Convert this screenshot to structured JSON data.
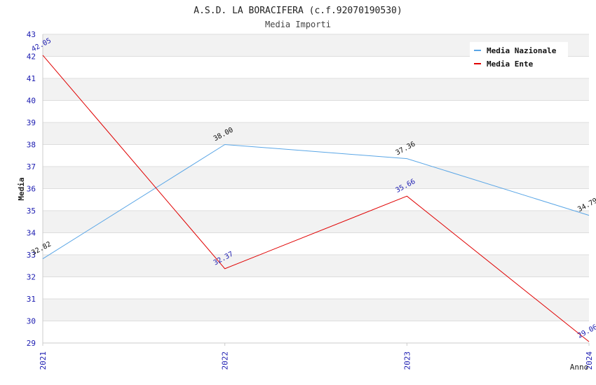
{
  "chart_data": {
    "type": "line",
    "title": "A.S.D. LA BORACIFERA (c.f.92070190530)",
    "subtitle": "Media Importi",
    "xlabel": "Anno",
    "ylabel": "Media",
    "categories": [
      "2021",
      "2022",
      "2023",
      "2024"
    ],
    "ylim": [
      29,
      43
    ],
    "yticks": [
      "29",
      "30",
      "31",
      "32",
      "33",
      "34",
      "35",
      "36",
      "37",
      "38",
      "39",
      "40",
      "41",
      "42",
      "43"
    ],
    "grid": "horizontal bands",
    "legend_position": "top-right",
    "series": [
      {
        "name": "Media Nazionale",
        "color": "#5aa6e6",
        "values": [
          32.82,
          38.0,
          37.36,
          34.79
        ],
        "labels": [
          "32.82",
          "38.00",
          "37.36",
          "34.79"
        ]
      },
      {
        "name": "Media Ente",
        "color": "#e00000",
        "values": [
          42.05,
          32.37,
          35.66,
          29.06
        ],
        "labels": [
          "42.05",
          "32.37",
          "35.66",
          "29.06"
        ]
      }
    ]
  }
}
